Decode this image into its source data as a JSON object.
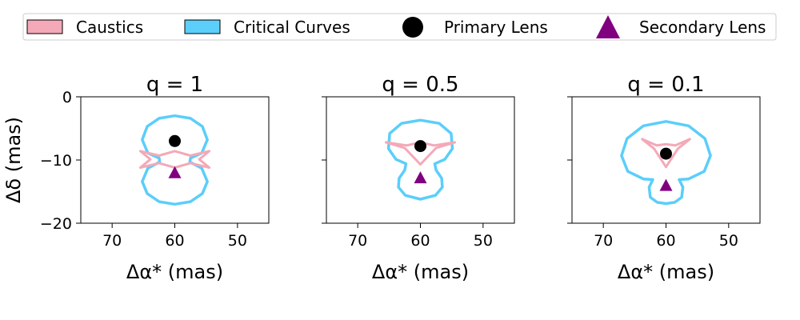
{
  "legend": {
    "placement": "top",
    "items": [
      {
        "label": "Caustics",
        "marker": "patch",
        "color": "#f4a9b8"
      },
      {
        "label": "Critical Curves",
        "marker": "patch",
        "color": "#5bcefa"
      },
      {
        "label": "Primary Lens",
        "marker": "circle",
        "color": "#000000"
      },
      {
        "label": "Secondary Lens",
        "marker": "triangle",
        "color": "#800080"
      }
    ]
  },
  "colors": {
    "caustics": "#f4a9b8",
    "critical": "#5bcefa",
    "primary": "#000000",
    "secondary": "#800080"
  },
  "chart_data": [
    {
      "type": "line",
      "title": "q = 1",
      "xlabel": "Δα* (mas)",
      "ylabel": "Δδ (mas)",
      "xlim": [
        75,
        45
      ],
      "ylim": [
        -20,
        0
      ],
      "xticks": [
        "70",
        "60",
        "50"
      ],
      "yticks": [
        "0",
        "−10",
        "−20"
      ],
      "primary_lens": {
        "x": 60,
        "y": -7
      },
      "secondary_lens": {
        "x": 60,
        "y": -12
      },
      "critical_curve": [
        [
          60,
          -3
        ],
        [
          62.5,
          -3.4
        ],
        [
          64.4,
          -4.7
        ],
        [
          65.2,
          -6.8
        ],
        [
          64.3,
          -8.9
        ],
        [
          62.5,
          -9.7
        ],
        [
          62.4,
          -10.3
        ],
        [
          64.3,
          -11.3
        ],
        [
          65.2,
          -13.4
        ],
        [
          64.4,
          -15.3
        ],
        [
          62.5,
          -16.6
        ],
        [
          60,
          -17
        ],
        [
          57.5,
          -16.6
        ],
        [
          55.6,
          -15.3
        ],
        [
          54.8,
          -13.4
        ],
        [
          55.7,
          -11.3
        ],
        [
          57.6,
          -10.3
        ],
        [
          57.5,
          -9.7
        ],
        [
          55.7,
          -8.9
        ],
        [
          54.8,
          -6.8
        ],
        [
          55.6,
          -4.7
        ],
        [
          57.5,
          -3.4
        ],
        [
          60,
          -3
        ]
      ],
      "caustic": [
        [
          65.5,
          -8.6
        ],
        [
          62.5,
          -9.3
        ],
        [
          60,
          -8.6
        ],
        [
          57.5,
          -9.3
        ],
        [
          54.5,
          -8.6
        ],
        [
          56.1,
          -9.9
        ],
        [
          54.5,
          -11.2
        ],
        [
          57.5,
          -10.5
        ],
        [
          60,
          -11.2
        ],
        [
          62.5,
          -10.5
        ],
        [
          65.5,
          -11.2
        ],
        [
          63.9,
          -9.9
        ],
        [
          65.5,
          -8.6
        ]
      ]
    },
    {
      "type": "line",
      "title": "q = 0.5",
      "xlabel": "Δα* (mas)",
      "ylabel": "",
      "xlim": [
        75,
        45
      ],
      "ylim": [
        -20,
        0
      ],
      "xticks": [
        "70",
        "60",
        "50"
      ],
      "yticks": [],
      "primary_lens": {
        "x": 60,
        "y": -7.8
      },
      "secondary_lens": {
        "x": 60,
        "y": -12.8
      },
      "critical_curve": [
        [
          60,
          -3.7
        ],
        [
          63,
          -4.2
        ],
        [
          64.9,
          -5.8
        ],
        [
          65.1,
          -8.2
        ],
        [
          63.9,
          -9.9
        ],
        [
          62.3,
          -10.6
        ],
        [
          62.5,
          -11.6
        ],
        [
          63.4,
          -12.9
        ],
        [
          63.5,
          -14.3
        ],
        [
          62.4,
          -15.6
        ],
        [
          60,
          -16.2
        ],
        [
          57.6,
          -15.6
        ],
        [
          56.5,
          -14.3
        ],
        [
          56.6,
          -12.9
        ],
        [
          57.5,
          -11.6
        ],
        [
          57.7,
          -10.6
        ],
        [
          56.1,
          -9.9
        ],
        [
          54.9,
          -8.2
        ],
        [
          55.1,
          -5.8
        ],
        [
          57,
          -4.2
        ],
        [
          60,
          -3.7
        ]
      ],
      "caustic": [
        [
          65.5,
          -7.2
        ],
        [
          62.2,
          -7.7
        ],
        [
          60,
          -7.2
        ],
        [
          57.8,
          -7.7
        ],
        [
          54.5,
          -7.2
        ],
        [
          57.5,
          -8.1
        ],
        [
          60,
          -10.7
        ],
        [
          62.5,
          -8.1
        ],
        [
          65.5,
          -7.2
        ]
      ]
    },
    {
      "type": "line",
      "title": "q = 0.1",
      "xlabel": "Δα* (mas)",
      "ylabel": "",
      "xlim": [
        75,
        45
      ],
      "ylim": [
        -20,
        0
      ],
      "xticks": [
        "70",
        "60",
        "50"
      ],
      "yticks": [],
      "primary_lens": {
        "x": 60,
        "y": -9
      },
      "secondary_lens": {
        "x": 60,
        "y": -14
      },
      "critical_curve": [
        [
          60,
          -3.9
        ],
        [
          63.6,
          -4.6
        ],
        [
          66.2,
          -6.6
        ],
        [
          67.1,
          -9.3
        ],
        [
          66.1,
          -11.8
        ],
        [
          63.6,
          -13
        ],
        [
          62.1,
          -13.1
        ],
        [
          62.7,
          -14.3
        ],
        [
          62.5,
          -15.9
        ],
        [
          61.4,
          -16.7
        ],
        [
          60,
          -16.9
        ],
        [
          58.6,
          -16.7
        ],
        [
          57.5,
          -15.9
        ],
        [
          57.3,
          -14.3
        ],
        [
          57.9,
          -13.1
        ],
        [
          56.4,
          -13
        ],
        [
          53.9,
          -11.8
        ],
        [
          52.9,
          -9.3
        ],
        [
          53.8,
          -6.6
        ],
        [
          56.4,
          -4.6
        ],
        [
          60,
          -3.9
        ]
      ],
      "caustic": [
        [
          63.8,
          -6.7
        ],
        [
          61.9,
          -8.2
        ],
        [
          60,
          -11.1
        ],
        [
          58.1,
          -8.2
        ],
        [
          56.2,
          -6.7
        ],
        [
          58.5,
          -7.7
        ],
        [
          60,
          -7.5
        ],
        [
          61.5,
          -7.7
        ],
        [
          63.8,
          -6.7
        ]
      ]
    }
  ]
}
